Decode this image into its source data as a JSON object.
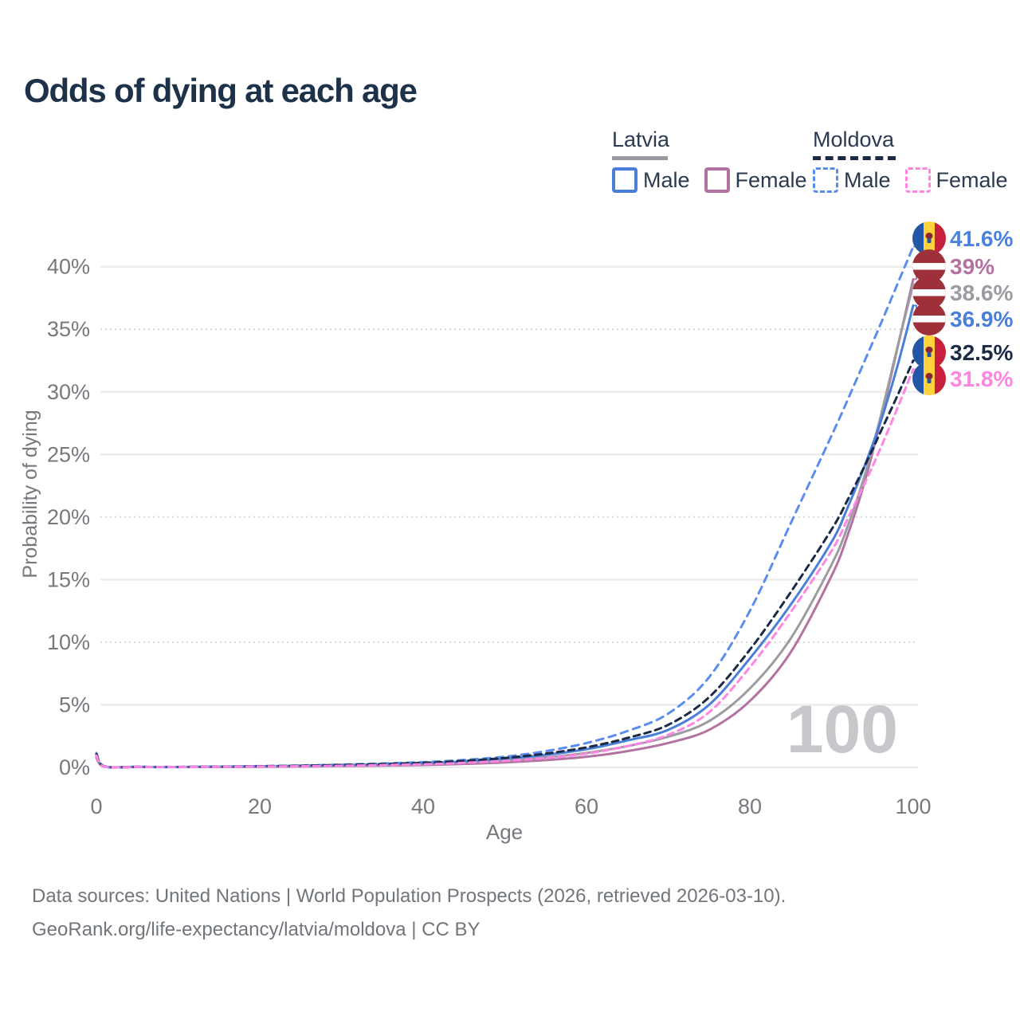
{
  "title": "Odds of dying at each age",
  "watermark_age_label": "100",
  "legend": {
    "groups": [
      {
        "country": "Latvia",
        "line_style": "solid",
        "line_color": "#9b9ba1",
        "items": [
          {
            "label": "Male",
            "color": "#4a7fd9"
          },
          {
            "label": "Female",
            "color": "#b273a1"
          }
        ]
      },
      {
        "country": "Moldova",
        "line_style": "dashed",
        "line_color": "#1b2b45",
        "items": [
          {
            "label": "Male",
            "color": "#5b8def"
          },
          {
            "label": "Female",
            "color": "#ff85e3"
          }
        ]
      }
    ]
  },
  "chart_data": {
    "type": "line",
    "title": "Odds of dying at each age",
    "xlabel": "Age",
    "ylabel": "Probability of dying",
    "x_ticks": [
      0,
      20,
      40,
      60,
      80,
      100
    ],
    "y_ticks": [
      "0%",
      "5%",
      "10%",
      "15%",
      "20%",
      "25%",
      "30%",
      "35%",
      "40%"
    ],
    "x_range": [
      0,
      100
    ],
    "y_range_pct": [
      0,
      43
    ],
    "grid": "horizontal-only",
    "legend_position": "top-right",
    "series": [
      {
        "name": "Moldova Male",
        "color": "#5b8def",
        "dash": "9 7",
        "flag": "moldova",
        "end_label": "41.6%",
        "label_color": "#4a82e0",
        "points": [
          [
            0,
            1.15
          ],
          [
            1,
            0.09
          ],
          [
            5,
            0.05
          ],
          [
            10,
            0.04
          ],
          [
            20,
            0.1
          ],
          [
            30,
            0.22
          ],
          [
            40,
            0.42
          ],
          [
            45,
            0.6
          ],
          [
            50,
            0.85
          ],
          [
            55,
            1.3
          ],
          [
            60,
            1.95
          ],
          [
            65,
            2.9
          ],
          [
            70,
            4.3
          ],
          [
            75,
            7.2
          ],
          [
            80,
            12.5
          ],
          [
            85,
            19.5
          ],
          [
            90,
            26.5
          ],
          [
            92,
            29.4
          ],
          [
            94,
            32.4
          ],
          [
            96,
            35.4
          ],
          [
            98,
            38.5
          ],
          [
            100,
            41.6
          ]
        ]
      },
      {
        "name": "Latvia Female",
        "color": "#b273a1",
        "dash": null,
        "flag": "latvia",
        "end_label": "39%",
        "label_color": "#b273a1",
        "points": [
          [
            0,
            0.75
          ],
          [
            1,
            0.06
          ],
          [
            5,
            0.035
          ],
          [
            10,
            0.025
          ],
          [
            20,
            0.05
          ],
          [
            30,
            0.1
          ],
          [
            40,
            0.19
          ],
          [
            45,
            0.28
          ],
          [
            50,
            0.4
          ],
          [
            55,
            0.58
          ],
          [
            60,
            0.85
          ],
          [
            65,
            1.3
          ],
          [
            70,
            1.95
          ],
          [
            75,
            3.0
          ],
          [
            80,
            5.3
          ],
          [
            85,
            9.2
          ],
          [
            90,
            15.3
          ],
          [
            92,
            18.6
          ],
          [
            94,
            22.7
          ],
          [
            96,
            27.7
          ],
          [
            98,
            33.3
          ],
          [
            100,
            39.0
          ]
        ]
      },
      {
        "name": "Latvia",
        "color": "#9b9ba1",
        "dash": null,
        "flag": "latvia",
        "end_label": "38.6%",
        "label_color": "#9b9ba1",
        "points": [
          [
            0,
            0.85
          ],
          [
            1,
            0.065
          ],
          [
            5,
            0.04
          ],
          [
            10,
            0.03
          ],
          [
            20,
            0.07
          ],
          [
            30,
            0.14
          ],
          [
            40,
            0.26
          ],
          [
            45,
            0.38
          ],
          [
            50,
            0.55
          ],
          [
            55,
            0.8
          ],
          [
            60,
            1.15
          ],
          [
            65,
            1.7
          ],
          [
            70,
            2.45
          ],
          [
            75,
            3.7
          ],
          [
            80,
            6.3
          ],
          [
            85,
            10.3
          ],
          [
            90,
            16.2
          ],
          [
            92,
            19.3
          ],
          [
            94,
            23.2
          ],
          [
            96,
            28.0
          ],
          [
            98,
            33.4
          ],
          [
            100,
            38.6
          ]
        ]
      },
      {
        "name": "Latvia Male",
        "color": "#4a7fd9",
        "dash": null,
        "flag": "latvia",
        "end_label": "36.9%",
        "label_color": "#4a7fd9",
        "points": [
          [
            0,
            0.95
          ],
          [
            1,
            0.07
          ],
          [
            5,
            0.04
          ],
          [
            10,
            0.03
          ],
          [
            20,
            0.09
          ],
          [
            30,
            0.18
          ],
          [
            40,
            0.33
          ],
          [
            45,
            0.48
          ],
          [
            50,
            0.7
          ],
          [
            55,
            1.0
          ],
          [
            60,
            1.45
          ],
          [
            65,
            2.15
          ],
          [
            70,
            3.0
          ],
          [
            75,
            5.0
          ],
          [
            80,
            8.7
          ],
          [
            85,
            13.0
          ],
          [
            90,
            18.0
          ],
          [
            92,
            20.8
          ],
          [
            94,
            24.0
          ],
          [
            96,
            27.6
          ],
          [
            98,
            31.9
          ],
          [
            100,
            36.9
          ]
        ]
      },
      {
        "name": "Moldova",
        "color": "#1b2b45",
        "dash": "8 6",
        "flag": "moldova",
        "end_label": "32.5%",
        "label_color": "#1b2b45",
        "points": [
          [
            0,
            1.05
          ],
          [
            1,
            0.08
          ],
          [
            5,
            0.045
          ],
          [
            10,
            0.035
          ],
          [
            20,
            0.09
          ],
          [
            30,
            0.19
          ],
          [
            40,
            0.36
          ],
          [
            45,
            0.52
          ],
          [
            50,
            0.75
          ],
          [
            55,
            1.1
          ],
          [
            60,
            1.6
          ],
          [
            65,
            2.35
          ],
          [
            70,
            3.4
          ],
          [
            75,
            5.6
          ],
          [
            80,
            9.4
          ],
          [
            85,
            14.0
          ],
          [
            90,
            19.0
          ],
          [
            92,
            21.4
          ],
          [
            94,
            24.0
          ],
          [
            96,
            26.8
          ],
          [
            98,
            29.6
          ],
          [
            100,
            32.5
          ]
        ]
      },
      {
        "name": "Moldova Female",
        "color": "#ff85e3",
        "dash": "8 6",
        "flag": "moldova",
        "end_label": "31.8%",
        "label_color": "#ff85e3",
        "points": [
          [
            0,
            0.95
          ],
          [
            1,
            0.07
          ],
          [
            5,
            0.04
          ],
          [
            10,
            0.03
          ],
          [
            20,
            0.07
          ],
          [
            30,
            0.13
          ],
          [
            40,
            0.25
          ],
          [
            45,
            0.36
          ],
          [
            50,
            0.52
          ],
          [
            55,
            0.75
          ],
          [
            60,
            1.1
          ],
          [
            65,
            1.7
          ],
          [
            70,
            2.6
          ],
          [
            75,
            4.4
          ],
          [
            80,
            8.0
          ],
          [
            85,
            12.4
          ],
          [
            90,
            17.3
          ],
          [
            92,
            19.9
          ],
          [
            94,
            22.6
          ],
          [
            96,
            25.5
          ],
          [
            98,
            28.6
          ],
          [
            100,
            31.8
          ]
        ]
      }
    ]
  },
  "footer": {
    "line1": "Data sources: United Nations | World Population Prospects (2026, retrieved 2026-03-10).",
    "line2": "GeoRank.org/life-expectancy/latvia/moldova | CC BY"
  }
}
